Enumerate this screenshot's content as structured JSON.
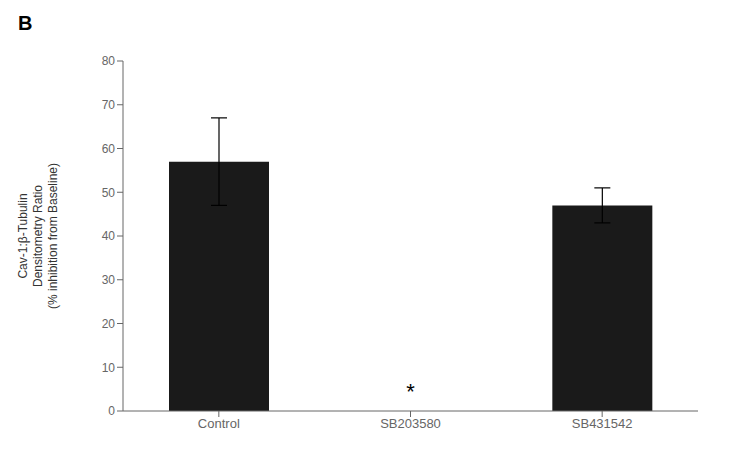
{
  "chart_data": {
    "type": "bar",
    "title": "B",
    "categories": [
      "Control",
      "SB203580",
      "SB431542"
    ],
    "values": [
      57,
      0,
      47
    ],
    "errors": [
      10,
      0,
      4
    ],
    "color": "#1a1a1a",
    "ylabel": "Cav-1:β-Tubulin\nDensitometry Ratio\n(% inhibition from Baseline)",
    "ylim": [
      0,
      80
    ],
    "yticks": [
      0,
      10,
      20,
      30,
      40,
      50,
      60,
      70,
      80
    ],
    "grid": false,
    "annotations": [
      {
        "text": "*",
        "x": "SB203580",
        "y": 1.5
      }
    ]
  }
}
